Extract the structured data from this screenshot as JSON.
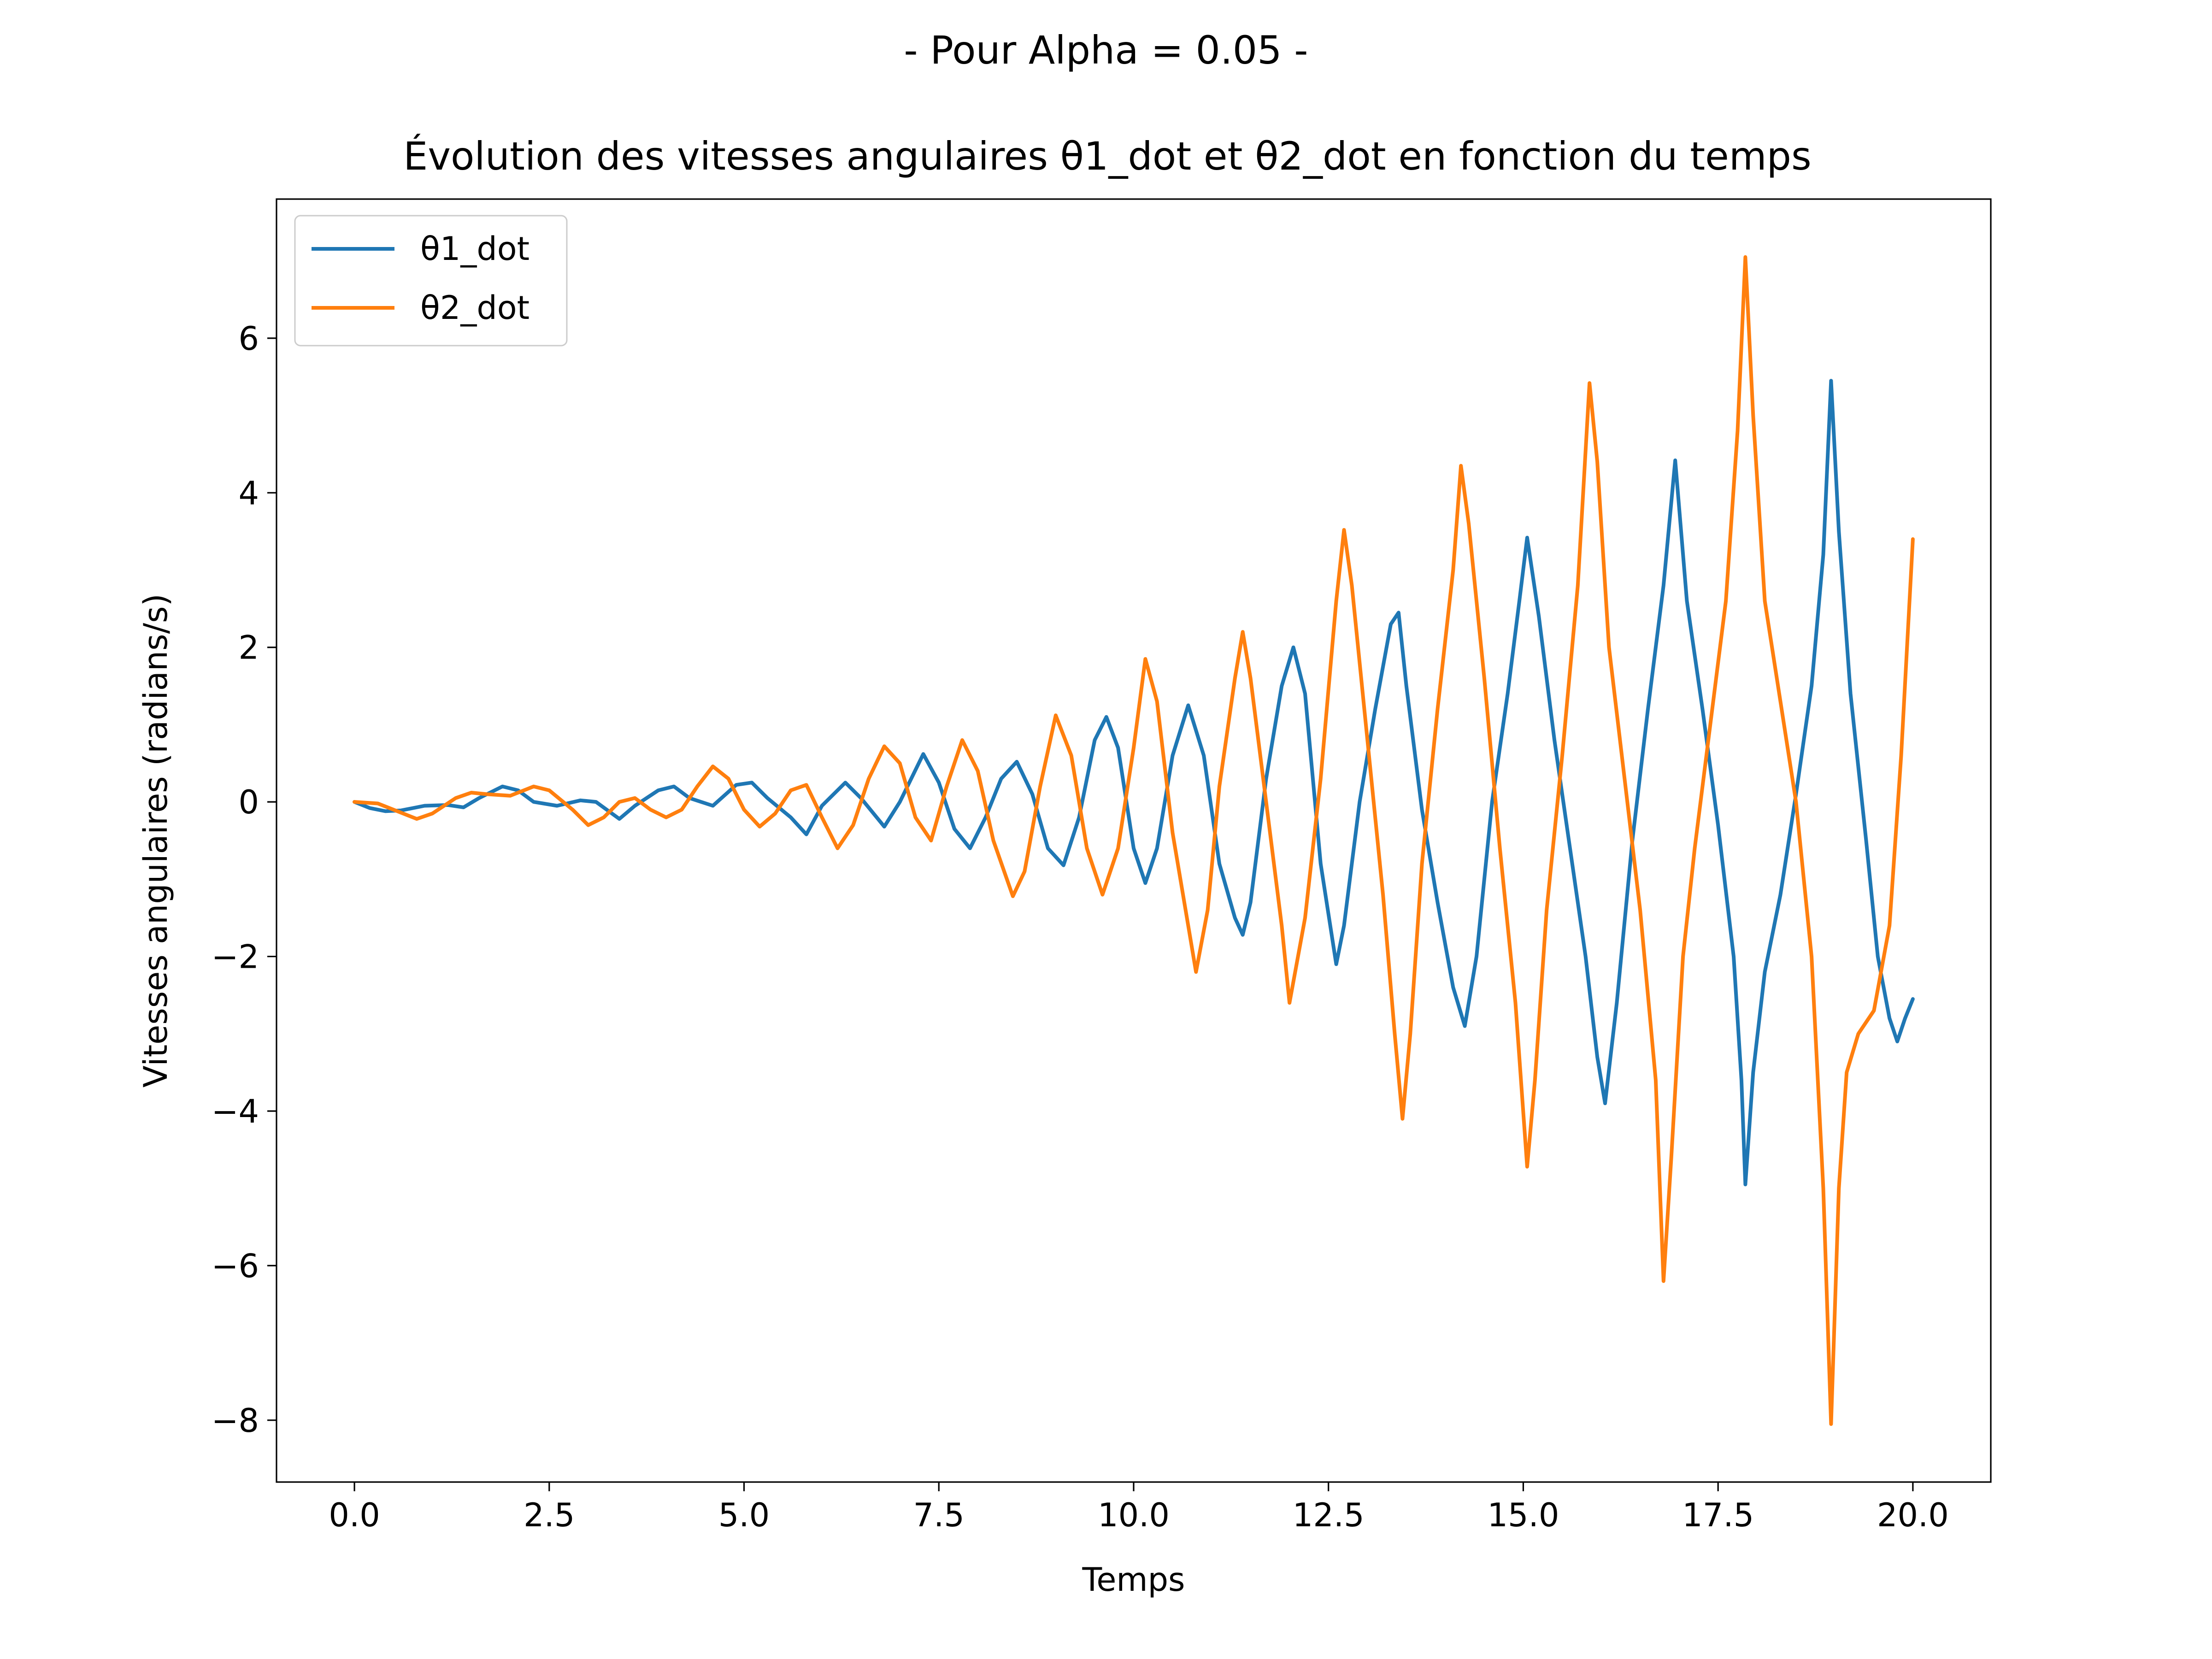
{
  "chart_data": {
    "type": "line",
    "suptitle": "- Pour Alpha = 0.05 -",
    "title": "Évolution des vitesses angulaires θ1_dot et θ2_dot en fonction du temps",
    "xlabel": "Temps",
    "ylabel": "Vitesses angulaires (radians/s)",
    "xlim": [
      -1.0,
      21.0
    ],
    "ylim": [
      -8.8,
      7.8
    ],
    "xticks": [
      0.0,
      2.5,
      5.0,
      7.5,
      10.0,
      12.5,
      15.0,
      17.5,
      20.0
    ],
    "xtick_labels": [
      "0.0",
      "2.5",
      "5.0",
      "7.5",
      "10.0",
      "12.5",
      "15.0",
      "17.5",
      "20.0"
    ],
    "yticks": [
      -8,
      -6,
      -4,
      -2,
      0,
      2,
      4,
      6
    ],
    "ytick_labels": [
      "−8",
      "−6",
      "−4",
      "−2",
      "0",
      "2",
      "4",
      "6"
    ],
    "grid": false,
    "legend_position": "upper-left",
    "series": [
      {
        "name": "θ1_dot",
        "color": "#1f77b4",
        "points": [
          [
            0.0,
            0.0
          ],
          [
            0.2,
            -0.08
          ],
          [
            0.4,
            -0.12
          ],
          [
            0.6,
            -0.11
          ],
          [
            0.9,
            -0.05
          ],
          [
            1.2,
            -0.04
          ],
          [
            1.4,
            -0.07
          ],
          [
            1.6,
            0.05
          ],
          [
            1.9,
            0.2
          ],
          [
            2.1,
            0.15
          ],
          [
            2.3,
            0.0
          ],
          [
            2.6,
            -0.05
          ],
          [
            2.9,
            0.02
          ],
          [
            3.1,
            0.0
          ],
          [
            3.4,
            -0.22
          ],
          [
            3.6,
            -0.05
          ],
          [
            3.9,
            0.15
          ],
          [
            4.1,
            0.2
          ],
          [
            4.3,
            0.05
          ],
          [
            4.6,
            -0.05
          ],
          [
            4.9,
            0.22
          ],
          [
            5.1,
            0.25
          ],
          [
            5.3,
            0.05
          ],
          [
            5.6,
            -0.2
          ],
          [
            5.8,
            -0.42
          ],
          [
            6.0,
            -0.05
          ],
          [
            6.3,
            0.25
          ],
          [
            6.5,
            0.05
          ],
          [
            6.8,
            -0.32
          ],
          [
            7.0,
            0.0
          ],
          [
            7.3,
            0.62
          ],
          [
            7.5,
            0.25
          ],
          [
            7.7,
            -0.35
          ],
          [
            7.9,
            -0.6
          ],
          [
            8.1,
            -0.2
          ],
          [
            8.3,
            0.3
          ],
          [
            8.5,
            0.52
          ],
          [
            8.7,
            0.1
          ],
          [
            8.9,
            -0.6
          ],
          [
            9.1,
            -0.82
          ],
          [
            9.3,
            -0.2
          ],
          [
            9.5,
            0.8
          ],
          [
            9.65,
            1.1
          ],
          [
            9.8,
            0.7
          ],
          [
            10.0,
            -0.6
          ],
          [
            10.15,
            -1.05
          ],
          [
            10.3,
            -0.6
          ],
          [
            10.5,
            0.6
          ],
          [
            10.7,
            1.25
          ],
          [
            10.9,
            0.6
          ],
          [
            11.1,
            -0.8
          ],
          [
            11.3,
            -1.5
          ],
          [
            11.4,
            -1.72
          ],
          [
            11.5,
            -1.3
          ],
          [
            11.7,
            0.3
          ],
          [
            11.9,
            1.5
          ],
          [
            12.05,
            2.0
          ],
          [
            12.2,
            1.4
          ],
          [
            12.4,
            -0.8
          ],
          [
            12.6,
            -2.1
          ],
          [
            12.7,
            -1.6
          ],
          [
            12.9,
            0.0
          ],
          [
            13.1,
            1.2
          ],
          [
            13.3,
            2.3
          ],
          [
            13.4,
            2.45
          ],
          [
            13.5,
            1.5
          ],
          [
            13.7,
            -0.1
          ],
          [
            13.9,
            -1.3
          ],
          [
            14.1,
            -2.4
          ],
          [
            14.25,
            -2.9
          ],
          [
            14.4,
            -2.0
          ],
          [
            14.6,
            0.0
          ],
          [
            14.8,
            1.4
          ],
          [
            14.95,
            2.6
          ],
          [
            15.05,
            3.42
          ],
          [
            15.2,
            2.4
          ],
          [
            15.4,
            0.8
          ],
          [
            15.6,
            -0.6
          ],
          [
            15.8,
            -2.0
          ],
          [
            15.95,
            -3.3
          ],
          [
            16.05,
            -3.9
          ],
          [
            16.2,
            -2.6
          ],
          [
            16.4,
            -0.5
          ],
          [
            16.6,
            1.2
          ],
          [
            16.8,
            2.8
          ],
          [
            16.95,
            4.42
          ],
          [
            17.1,
            2.6
          ],
          [
            17.3,
            1.2
          ],
          [
            17.5,
            -0.3
          ],
          [
            17.7,
            -2.0
          ],
          [
            17.8,
            -3.6
          ],
          [
            17.85,
            -4.95
          ],
          [
            17.95,
            -3.5
          ],
          [
            18.1,
            -2.2
          ],
          [
            18.3,
            -1.2
          ],
          [
            18.5,
            0.1
          ],
          [
            18.7,
            1.5
          ],
          [
            18.85,
            3.2
          ],
          [
            18.95,
            5.45
          ],
          [
            19.05,
            3.5
          ],
          [
            19.2,
            1.4
          ],
          [
            19.4,
            -0.5
          ],
          [
            19.55,
            -2.0
          ],
          [
            19.7,
            -2.8
          ],
          [
            19.8,
            -3.1
          ],
          [
            19.9,
            -2.8
          ],
          [
            20.0,
            -2.55
          ]
        ]
      },
      {
        "name": "θ2_dot",
        "color": "#ff7f0e",
        "points": [
          [
            0.0,
            0.0
          ],
          [
            0.3,
            -0.02
          ],
          [
            0.5,
            -0.1
          ],
          [
            0.8,
            -0.22
          ],
          [
            1.0,
            -0.15
          ],
          [
            1.3,
            0.05
          ],
          [
            1.5,
            0.12
          ],
          [
            1.7,
            0.1
          ],
          [
            2.0,
            0.08
          ],
          [
            2.3,
            0.2
          ],
          [
            2.5,
            0.15
          ],
          [
            2.8,
            -0.1
          ],
          [
            3.0,
            -0.3
          ],
          [
            3.2,
            -0.2
          ],
          [
            3.4,
            0.0
          ],
          [
            3.6,
            0.05
          ],
          [
            3.8,
            -0.1
          ],
          [
            4.0,
            -0.2
          ],
          [
            4.2,
            -0.1
          ],
          [
            4.4,
            0.2
          ],
          [
            4.6,
            0.46
          ],
          [
            4.8,
            0.3
          ],
          [
            5.0,
            -0.1
          ],
          [
            5.2,
            -0.32
          ],
          [
            5.4,
            -0.15
          ],
          [
            5.6,
            0.15
          ],
          [
            5.8,
            0.22
          ],
          [
            6.0,
            -0.2
          ],
          [
            6.2,
            -0.6
          ],
          [
            6.4,
            -0.3
          ],
          [
            6.6,
            0.3
          ],
          [
            6.8,
            0.72
          ],
          [
            7.0,
            0.5
          ],
          [
            7.2,
            -0.2
          ],
          [
            7.4,
            -0.5
          ],
          [
            7.6,
            0.2
          ],
          [
            7.8,
            0.8
          ],
          [
            8.0,
            0.4
          ],
          [
            8.2,
            -0.5
          ],
          [
            8.45,
            -1.22
          ],
          [
            8.6,
            -0.9
          ],
          [
            8.8,
            0.2
          ],
          [
            9.0,
            1.12
          ],
          [
            9.2,
            0.6
          ],
          [
            9.4,
            -0.6
          ],
          [
            9.6,
            -1.2
          ],
          [
            9.8,
            -0.6
          ],
          [
            10.0,
            0.7
          ],
          [
            10.15,
            1.85
          ],
          [
            10.3,
            1.3
          ],
          [
            10.5,
            -0.4
          ],
          [
            10.7,
            -1.6
          ],
          [
            10.8,
            -2.2
          ],
          [
            10.95,
            -1.4
          ],
          [
            11.1,
            0.2
          ],
          [
            11.3,
            1.6
          ],
          [
            11.4,
            2.2
          ],
          [
            11.5,
            1.6
          ],
          [
            11.7,
            0.0
          ],
          [
            11.9,
            -1.6
          ],
          [
            12.0,
            -2.6
          ],
          [
            12.2,
            -1.5
          ],
          [
            12.4,
            0.3
          ],
          [
            12.6,
            2.6
          ],
          [
            12.7,
            3.52
          ],
          [
            12.8,
            2.8
          ],
          [
            13.0,
            0.8
          ],
          [
            13.2,
            -1.2
          ],
          [
            13.35,
            -3.0
          ],
          [
            13.45,
            -4.1
          ],
          [
            13.55,
            -3.0
          ],
          [
            13.7,
            -0.8
          ],
          [
            13.9,
            1.2
          ],
          [
            14.1,
            3.0
          ],
          [
            14.2,
            4.35
          ],
          [
            14.3,
            3.6
          ],
          [
            14.5,
            1.6
          ],
          [
            14.7,
            -0.6
          ],
          [
            14.9,
            -2.6
          ],
          [
            15.05,
            -4.72
          ],
          [
            15.15,
            -3.6
          ],
          [
            15.3,
            -1.4
          ],
          [
            15.5,
            0.6
          ],
          [
            15.7,
            2.8
          ],
          [
            15.85,
            5.42
          ],
          [
            15.95,
            4.4
          ],
          [
            16.1,
            2.0
          ],
          [
            16.3,
            0.3
          ],
          [
            16.5,
            -1.4
          ],
          [
            16.7,
            -3.6
          ],
          [
            16.8,
            -6.2
          ],
          [
            16.9,
            -4.6
          ],
          [
            17.05,
            -2.0
          ],
          [
            17.2,
            -0.6
          ],
          [
            17.4,
            1.0
          ],
          [
            17.6,
            2.6
          ],
          [
            17.75,
            4.8
          ],
          [
            17.85,
            7.05
          ],
          [
            17.95,
            5.0
          ],
          [
            18.1,
            2.6
          ],
          [
            18.3,
            1.3
          ],
          [
            18.5,
            0.0
          ],
          [
            18.7,
            -2.0
          ],
          [
            18.85,
            -5.0
          ],
          [
            18.95,
            -8.05
          ],
          [
            19.05,
            -5.0
          ],
          [
            19.15,
            -3.5
          ],
          [
            19.3,
            -3.0
          ],
          [
            19.5,
            -2.7
          ],
          [
            19.7,
            -1.6
          ],
          [
            19.85,
            0.6
          ],
          [
            20.0,
            3.4
          ]
        ]
      }
    ]
  }
}
